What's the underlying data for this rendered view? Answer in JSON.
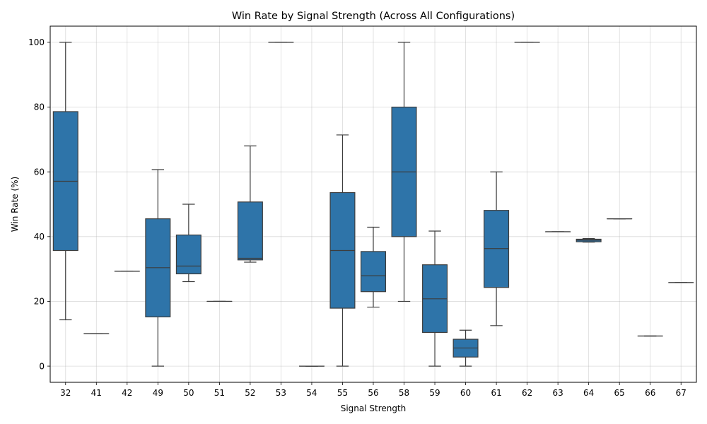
{
  "chart_data": {
    "type": "box",
    "title": "Win Rate by Signal Strength (Across All Configurations)",
    "xlabel": "Signal Strength",
    "ylabel": "Win Rate (%)",
    "ylim": [
      -5,
      105
    ],
    "yticks": [
      0,
      20,
      40,
      60,
      80,
      100
    ],
    "grid": true,
    "box_color": "#2e74a9",
    "line_color": "#3d3d3d",
    "categories": [
      "32",
      "41",
      "42",
      "49",
      "50",
      "51",
      "52",
      "53",
      "54",
      "55",
      "56",
      "58",
      "59",
      "60",
      "61",
      "62",
      "63",
      "64",
      "65",
      "66",
      "67"
    ],
    "boxes": [
      {
        "category": "32",
        "whisker_low": 14.3,
        "q1": 35.7,
        "median": 57.1,
        "q3": 78.6,
        "whisker_high": 100
      },
      {
        "category": "41",
        "whisker_low": 10,
        "q1": 10,
        "median": 10,
        "q3": 10,
        "whisker_high": 10
      },
      {
        "category": "42",
        "whisker_low": 29.3,
        "q1": 29.3,
        "median": 29.3,
        "q3": 29.3,
        "whisker_high": 29.3
      },
      {
        "category": "49",
        "whisker_low": 0,
        "q1": 15.2,
        "median": 30.4,
        "q3": 45.5,
        "whisker_high": 60.7
      },
      {
        "category": "50",
        "whisker_low": 26.1,
        "q1": 28.5,
        "median": 30.9,
        "q3": 40.5,
        "whisker_high": 50
      },
      {
        "category": "51",
        "whisker_low": 20,
        "q1": 20,
        "median": 20,
        "q3": 20,
        "whisker_high": 20
      },
      {
        "category": "52",
        "whisker_low": 32.1,
        "q1": 32.8,
        "median": 33.3,
        "q3": 50.7,
        "whisker_high": 68
      },
      {
        "category": "53",
        "whisker_low": 100,
        "q1": 100,
        "median": 100,
        "q3": 100,
        "whisker_high": 100
      },
      {
        "category": "54",
        "whisker_low": 0,
        "q1": 0,
        "median": 0,
        "q3": 0,
        "whisker_high": 0
      },
      {
        "category": "55",
        "whisker_low": 0,
        "q1": 17.9,
        "median": 35.7,
        "q3": 53.6,
        "whisker_high": 71.4
      },
      {
        "category": "56",
        "whisker_low": 18.2,
        "q1": 23,
        "median": 27.9,
        "q3": 35.4,
        "whisker_high": 42.9
      },
      {
        "category": "58",
        "whisker_low": 20,
        "q1": 40,
        "median": 60,
        "q3": 80,
        "whisker_high": 100
      },
      {
        "category": "59",
        "whisker_low": 0,
        "q1": 10.4,
        "median": 20.8,
        "q3": 31.3,
        "whisker_high": 41.7
      },
      {
        "category": "60",
        "whisker_low": 0,
        "q1": 2.8,
        "median": 5.6,
        "q3": 8.3,
        "whisker_high": 11.1
      },
      {
        "category": "61",
        "whisker_low": 12.5,
        "q1": 24.3,
        "median": 36.3,
        "q3": 48.1,
        "whisker_high": 60
      },
      {
        "category": "62",
        "whisker_low": 100,
        "q1": 100,
        "median": 100,
        "q3": 100,
        "whisker_high": 100
      },
      {
        "category": "63",
        "whisker_low": 41.5,
        "q1": 41.5,
        "median": 41.5,
        "q3": 41.5,
        "whisker_high": 41.5
      },
      {
        "category": "64",
        "whisker_low": 38.3,
        "q1": 38.4,
        "median": 38.9,
        "q3": 39.2,
        "whisker_high": 39.4
      },
      {
        "category": "65",
        "whisker_low": 45.5,
        "q1": 45.5,
        "median": 45.5,
        "q3": 45.5,
        "whisker_high": 45.5
      },
      {
        "category": "66",
        "whisker_low": 9.3,
        "q1": 9.3,
        "median": 9.3,
        "q3": 9.3,
        "whisker_high": 9.3
      },
      {
        "category": "67",
        "whisker_low": 25.8,
        "q1": 25.8,
        "median": 25.8,
        "q3": 25.8,
        "whisker_high": 25.8
      }
    ]
  }
}
